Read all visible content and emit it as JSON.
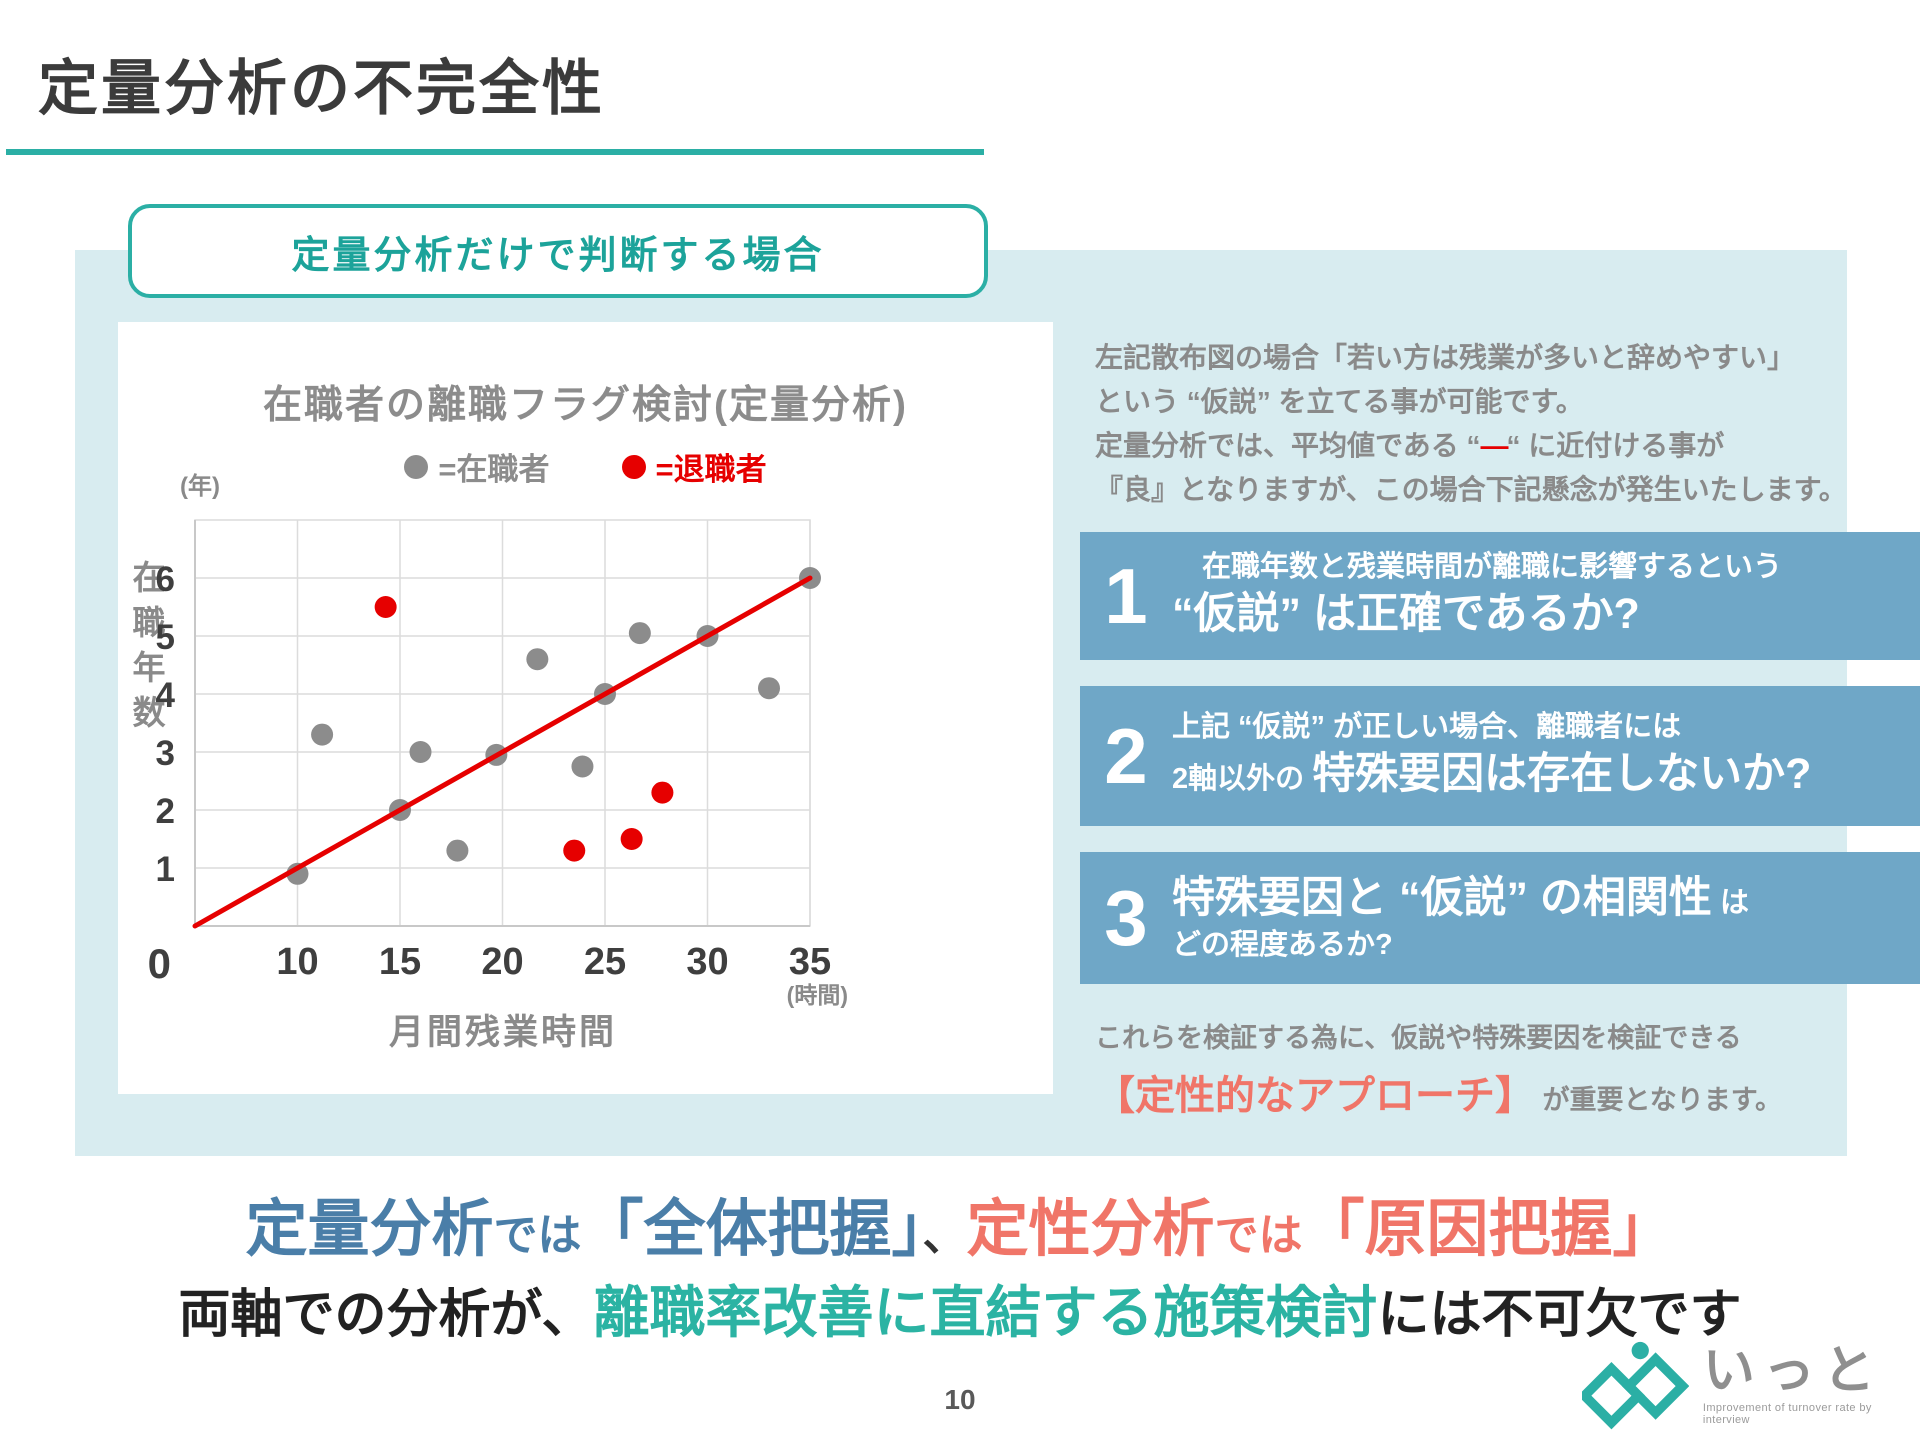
{
  "colors": {
    "teal": "#2BAFA5",
    "teal-text": "#1CA39A",
    "teal-strong": "#2BB3A3",
    "panel": "#D8ECF0",
    "box-blue": "#6FA7C7",
    "blue-text": "#4A7EA8",
    "coral": "#F07568",
    "red": "#E60000",
    "gray-text": "#8A8A8A",
    "dark": "#3B3B3B",
    "tick": "#3F3F3F",
    "dot-gray": "#8C8C8C",
    "logo-gray": "#8F8F8F"
  },
  "slide": {
    "title": "定量分析の不完全性",
    "page_number": "10"
  },
  "header_box": {
    "label": "定量分析だけで判断する場合"
  },
  "chart_data": {
    "type": "scatter",
    "title": "在職者の離職フラグ検討(定量分析)",
    "y_unit": "(年)",
    "x_unit": "(時間)",
    "ylabel": "在職年数",
    "xlabel": "月間残業時間",
    "origin_label": "0",
    "x_ticks": [
      10,
      15,
      20,
      25,
      30,
      35
    ],
    "y_ticks": [
      1,
      2,
      3,
      4,
      5,
      6
    ],
    "ylim": [
      0,
      7
    ],
    "grid": true,
    "legend_position": "top",
    "legend": [
      {
        "label": "=在職者",
        "color": "#8C8C8C"
      },
      {
        "label": "=退職者",
        "color": "#E60000"
      }
    ],
    "series": [
      {
        "name": "在職者",
        "color": "#8C8C8C",
        "points": [
          [
            10,
            0.9
          ],
          [
            11.2,
            3.3
          ],
          [
            15,
            2.0
          ],
          [
            16,
            3.0
          ],
          [
            17.8,
            1.3
          ],
          [
            19.7,
            2.95
          ],
          [
            21.7,
            4.6
          ],
          [
            23.9,
            2.75
          ],
          [
            25,
            4.0
          ],
          [
            26.7,
            5.05
          ],
          [
            30,
            5.0
          ],
          [
            33,
            4.1
          ],
          [
            35,
            6.0
          ]
        ]
      },
      {
        "name": "退職者",
        "color": "#E60000",
        "points": [
          [
            14.3,
            5.5
          ],
          [
            23.5,
            1.3
          ],
          [
            26.3,
            1.5
          ],
          [
            27.8,
            2.3
          ]
        ]
      }
    ],
    "trend_line": {
      "color": "#E60000",
      "from": [
        0,
        0
      ],
      "to": [
        35,
        6
      ]
    }
  },
  "right_panel": {
    "intro_lines": [
      [
        {
          "text": "左記散布図の場合「若い方は残業が多いと辞めやすい」"
        }
      ],
      [
        {
          "text": "という “仮説” を立てる事が可能です。"
        }
      ],
      [
        {
          "text": "定量分析では、平均値である “"
        },
        {
          "text": "—",
          "cls": "red-dash"
        },
        {
          "text": "“ に近付ける事が"
        }
      ],
      [
        {
          "text": "『良』となりますが、この場合下記懸念が発生いたします。"
        }
      ]
    ],
    "boxes": [
      {
        "number": "1",
        "lines": [
          [
            {
              "text": "在職年数と残業時間が離職に影響するという",
              "cls": "sm"
            }
          ],
          [
            {
              "text": "“仮説” は正確であるか?",
              "cls": "lg"
            }
          ]
        ]
      },
      {
        "number": "2",
        "lines": [
          [
            {
              "text": "上記 “仮説” が正しい場合、離職者には",
              "cls": "sm"
            }
          ],
          [
            {
              "text": "2軸以外の ",
              "cls": "sm"
            },
            {
              "text": "特殊要因は存在しないか?",
              "cls": "lg"
            }
          ]
        ]
      },
      {
        "number": "3",
        "lines": [
          [
            {
              "text": "特殊要因と “仮説” の相関性",
              "cls": "lg"
            },
            {
              "text": " は",
              "cls": "sm"
            }
          ],
          [
            {
              "text": "どの程度あるか?",
              "cls": "sm"
            }
          ]
        ]
      }
    ],
    "outro_line1": [
      {
        "text": "これらを検証する為に、仮説や特殊要因を検証できる",
        "cls": "gray"
      }
    ],
    "outro_line2": [
      {
        "text": "【定性的なアプローチ】",
        "cls": "coral-hl"
      },
      {
        "text": " が重要となります。",
        "cls": "gray"
      }
    ]
  },
  "bottom": {
    "line1": [
      {
        "text": "定量分析",
        "cls": "b-big"
      },
      {
        "text": "では",
        "cls": "b-mid"
      },
      {
        "text": "「全体把握」",
        "cls": "b-big"
      },
      {
        "text": "、",
        "cls": "d-mid"
      },
      {
        "text": "定性分析",
        "cls": "c-big"
      },
      {
        "text": "では",
        "cls": "c-mid"
      },
      {
        "text": "「原因把握」",
        "cls": "c-big"
      }
    ],
    "line2": [
      {
        "text": "両軸での分析が、",
        "cls": "d-big"
      },
      {
        "text": "離職率改善に直結する施策検討",
        "cls": "t-big"
      },
      {
        "text": "には不可欠です",
        "cls": "d-big"
      }
    ]
  },
  "logo": {
    "text": "いっと",
    "tagline": "Improvement of turnover rate by interview"
  }
}
